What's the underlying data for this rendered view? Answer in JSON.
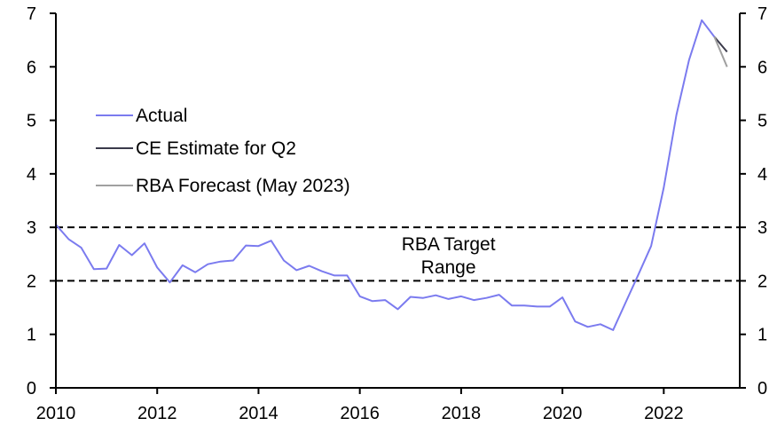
{
  "chart_data": {
    "type": "line",
    "title": "",
    "xlabel": "",
    "ylabel": "",
    "xlim": [
      2010,
      2023.5
    ],
    "ylim": [
      0,
      7
    ],
    "x_ticks": [
      2010,
      2012,
      2014,
      2016,
      2018,
      2020,
      2022
    ],
    "x_tick_labels": [
      "2010",
      "2012",
      "2014",
      "2016",
      "2018",
      "2020",
      "2022"
    ],
    "y_ticks": [
      0,
      1,
      2,
      3,
      4,
      5,
      6,
      7
    ],
    "y_tick_labels": [
      "0",
      "1",
      "2",
      "3",
      "4",
      "5",
      "6",
      "7"
    ],
    "right_axis_mirrors_left": true,
    "grid": false,
    "legend_position": "upper-left",
    "series": [
      {
        "name": "Actual",
        "color": "#7b7bef",
        "x": [
          2010.0,
          2010.25,
          2010.5,
          2010.75,
          2011.0,
          2011.25,
          2011.5,
          2011.75,
          2012.0,
          2012.25,
          2012.5,
          2012.75,
          2013.0,
          2013.25,
          2013.5,
          2013.75,
          2014.0,
          2014.25,
          2014.5,
          2014.75,
          2015.0,
          2015.25,
          2015.5,
          2015.75,
          2016.0,
          2016.25,
          2016.5,
          2016.75,
          2017.0,
          2017.25,
          2017.5,
          2017.75,
          2018.0,
          2018.25,
          2018.5,
          2018.75,
          2019.0,
          2019.25,
          2019.5,
          2019.75,
          2020.0,
          2020.25,
          2020.5,
          2020.75,
          2021.0,
          2021.25,
          2021.5,
          2021.75,
          2022.0,
          2022.25,
          2022.5,
          2022.75,
          2023.0
        ],
        "values": [
          3.05,
          2.78,
          2.62,
          2.22,
          2.23,
          2.67,
          2.48,
          2.7,
          2.25,
          1.97,
          2.29,
          2.16,
          2.31,
          2.36,
          2.38,
          2.66,
          2.65,
          2.75,
          2.38,
          2.2,
          2.28,
          2.18,
          2.1,
          2.1,
          1.71,
          1.62,
          1.64,
          1.47,
          1.7,
          1.68,
          1.73,
          1.66,
          1.71,
          1.64,
          1.68,
          1.74,
          1.54,
          1.54,
          1.52,
          1.52,
          1.69,
          1.24,
          1.14,
          1.19,
          1.08,
          1.6,
          2.12,
          2.65,
          3.74,
          5.1,
          6.13,
          6.87,
          6.56
        ]
      },
      {
        "name": "CE Estimate for Q2",
        "color": "#3a3a4a",
        "x": [
          2023.0,
          2023.25
        ],
        "values": [
          6.56,
          6.28
        ]
      },
      {
        "name": "RBA Forecast (May 2023)",
        "color": "#a0a0a0",
        "x": [
          2023.0,
          2023.25
        ],
        "values": [
          6.56,
          6.0
        ]
      }
    ],
    "reference_lines": [
      {
        "name": "RBA target upper",
        "y": 3,
        "style": "dashed",
        "color": "#000000"
      },
      {
        "name": "RBA target lower",
        "y": 2,
        "style": "dashed",
        "color": "#000000"
      }
    ],
    "annotations": [
      {
        "text_line1": "RBA Target",
        "text_line2": "Range",
        "x": 2017.75,
        "y": 2.5
      }
    ]
  }
}
